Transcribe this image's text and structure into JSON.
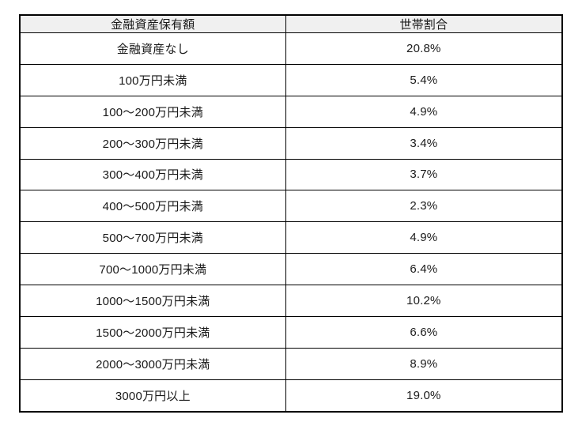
{
  "chart_data": {
    "type": "table",
    "columns": [
      "金融資産保有額",
      "世帯割合"
    ],
    "rows": [
      [
        "金融資産なし",
        "20.8%"
      ],
      [
        "100万円未満",
        "5.4%"
      ],
      [
        "100〜200万円未満",
        "4.9%"
      ],
      [
        "200〜300万円未満",
        "3.4%"
      ],
      [
        "300〜400万円未満",
        "3.7%"
      ],
      [
        "400〜500万円未満",
        "2.3%"
      ],
      [
        "500〜700万円未満",
        "4.9%"
      ],
      [
        "700〜1000万円未満",
        "6.4%"
      ],
      [
        "1000〜1500万円未満",
        "10.2%"
      ],
      [
        "1500〜2000万円未満",
        "6.6%"
      ],
      [
        "2000〜3000万円未満",
        "8.9%"
      ],
      [
        "3000万円以上",
        "19.0%"
      ]
    ],
    "colors": {
      "header_background": "#f0f0f0",
      "border": "#000000",
      "text": "#1a1a1a",
      "page_background": "#ffffff"
    }
  }
}
